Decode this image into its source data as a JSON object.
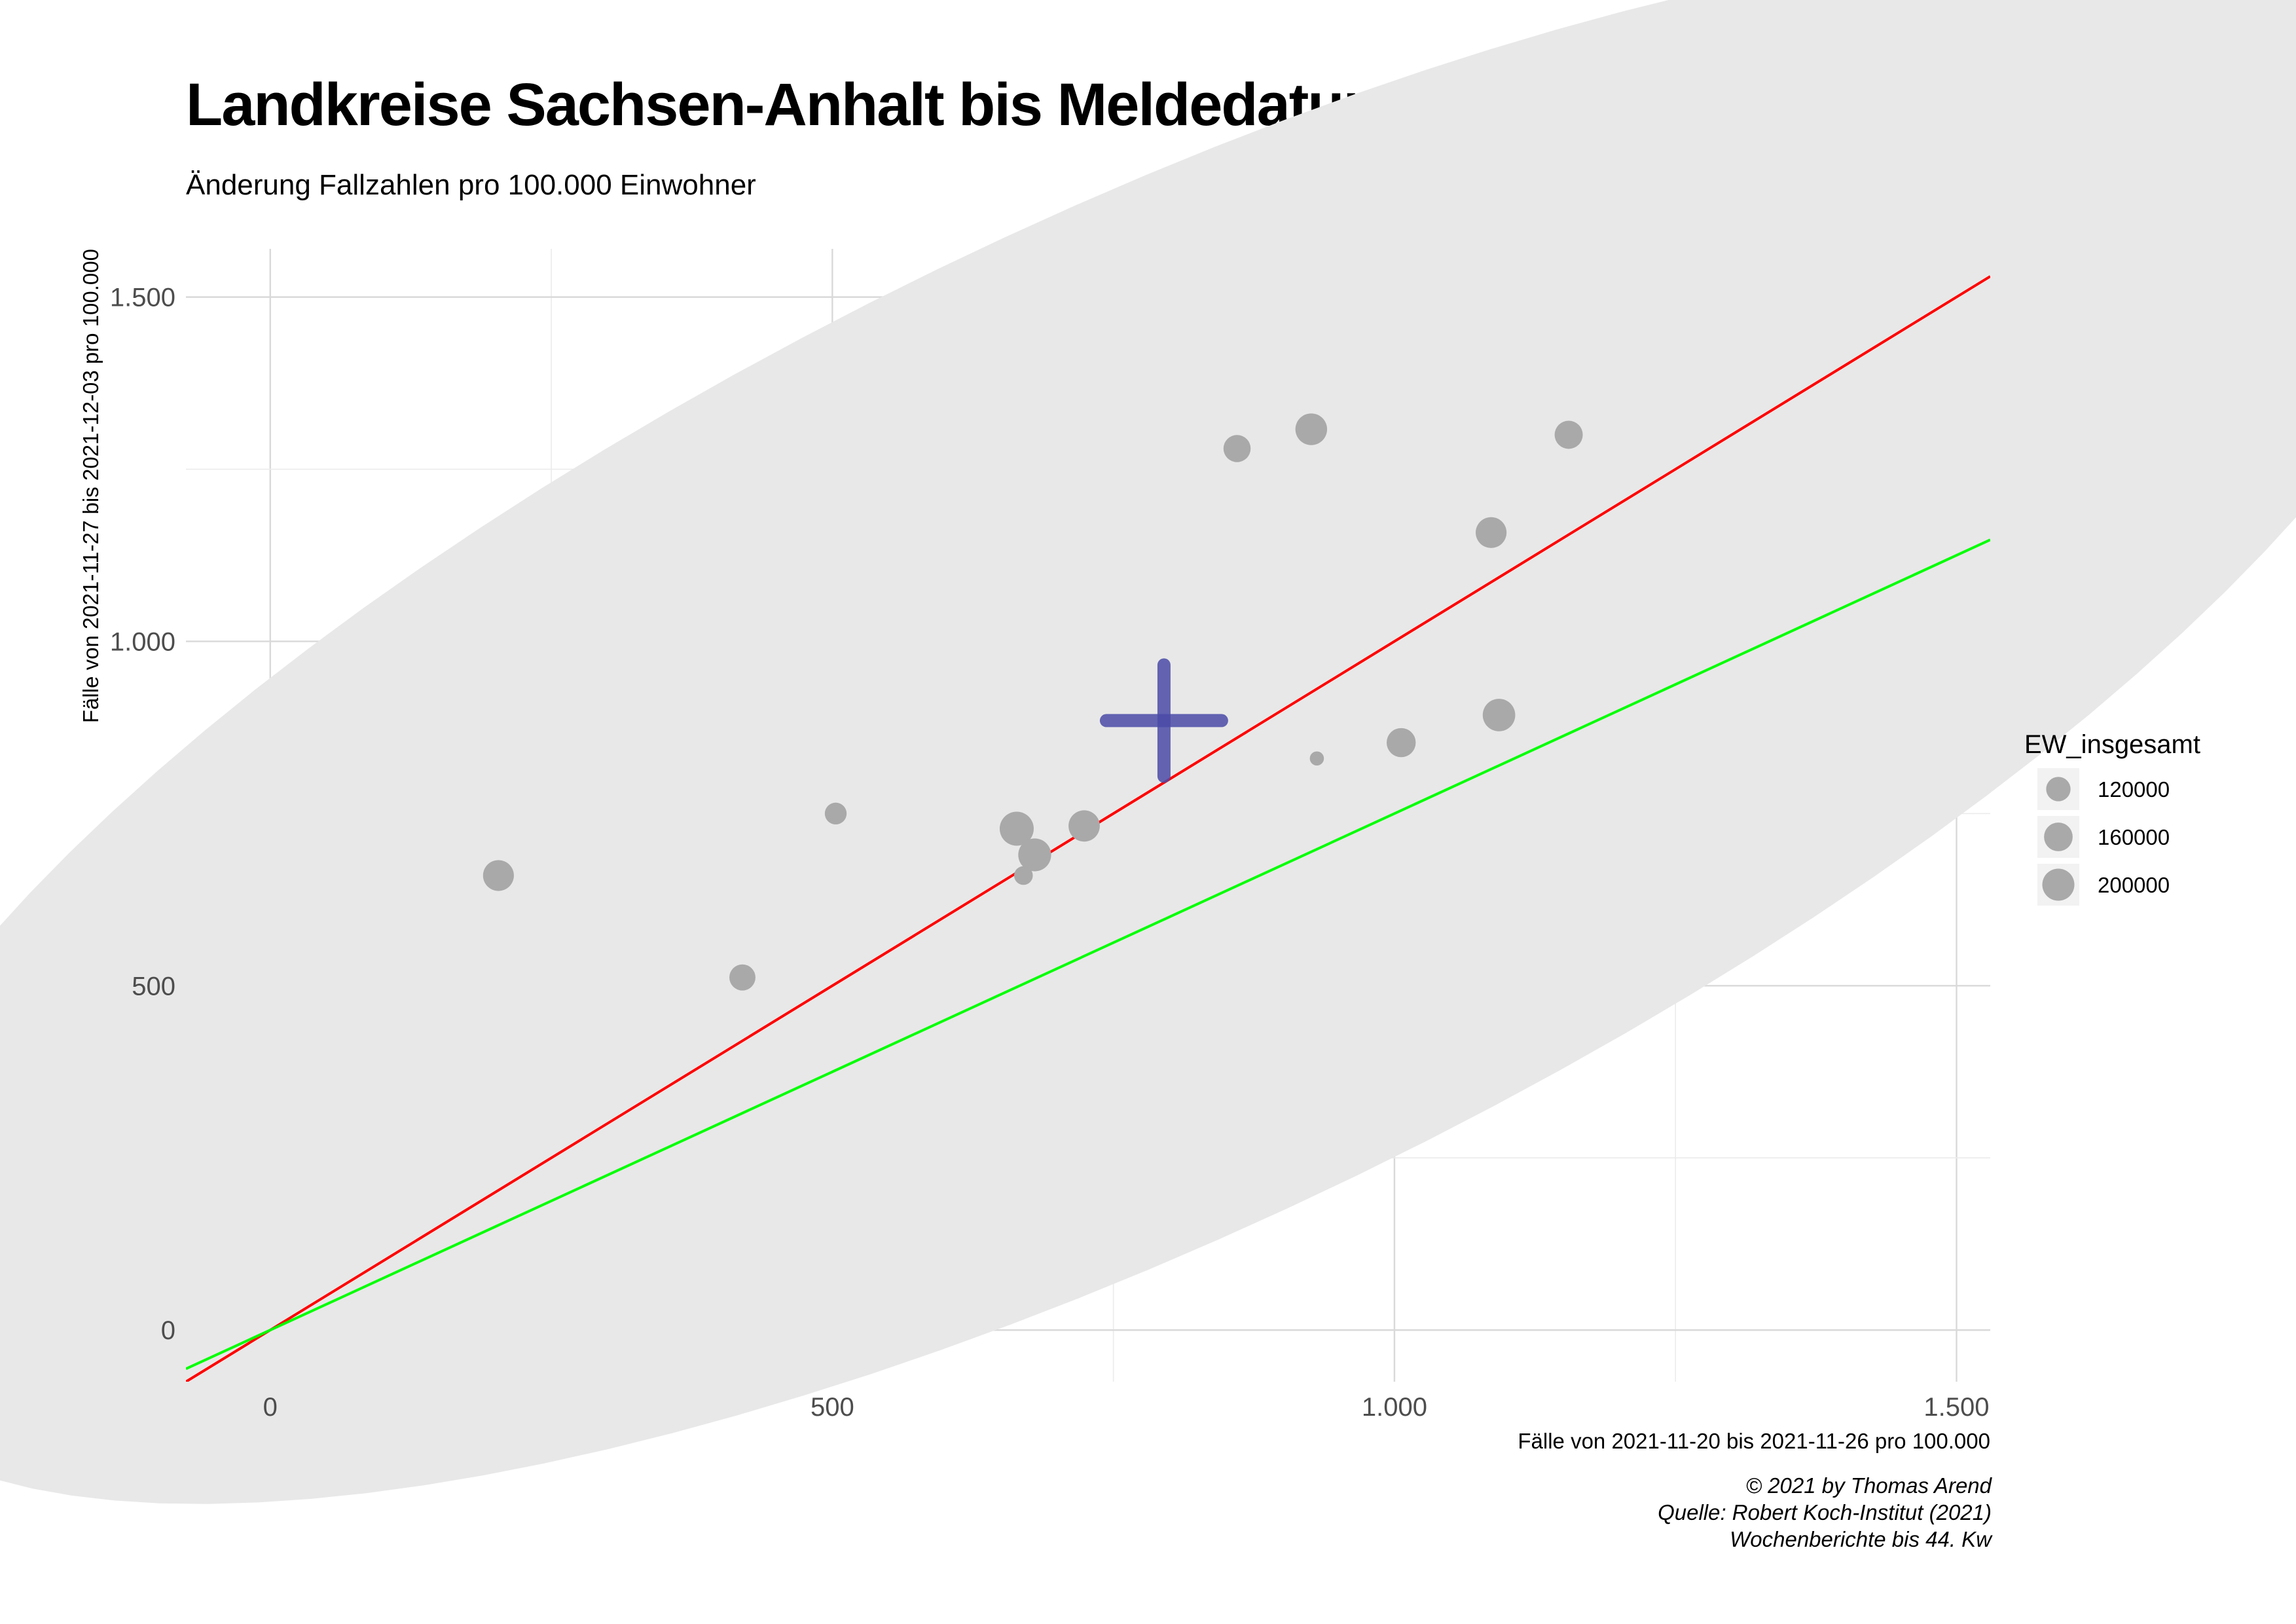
{
  "title": "Landkreise Sachsen-Anhalt bis Meldedatum 2021-12-03",
  "subtitle": "Änderung Fallzahlen pro 100.000 Einwohner",
  "caption": {
    "line1": "© 2021 by Thomas Arend",
    "line2": "Quelle: Robert Koch-Institut (2021)",
    "line3": "Wochenberichte bis 44. Kw"
  },
  "chart_data": {
    "type": "scatter",
    "xlabel": "Fälle von 2021-11-20 bis 2021-11-26 pro 100.000",
    "ylabel": "Fälle von 2021-11-27 bis 2021-12-03 pro 100.000",
    "xlim": [
      -75,
      1530
    ],
    "ylim": [
      -75,
      1570
    ],
    "x_ticks": [
      0,
      500,
      1000,
      1500
    ],
    "x_tick_labels": [
      "0",
      "500",
      "1.000",
      "1.500"
    ],
    "y_ticks": [
      0,
      500,
      1000,
      1500
    ],
    "y_tick_labels": [
      "0",
      "500",
      "1.000",
      "1.500"
    ],
    "grid": true,
    "points": [
      {
        "x": 203,
        "y": 660,
        "size": 185000
      },
      {
        "x": 420,
        "y": 512,
        "size": 135000
      },
      {
        "x": 503,
        "y": 750,
        "size": 100000
      },
      {
        "x": 664,
        "y": 728,
        "size": 225000
      },
      {
        "x": 670,
        "y": 660,
        "size": 80000
      },
      {
        "x": 680,
        "y": 690,
        "size": 210000
      },
      {
        "x": 724,
        "y": 732,
        "size": 190000
      },
      {
        "x": 860,
        "y": 1280,
        "size": 145000
      },
      {
        "x": 926,
        "y": 1308,
        "size": 195000
      },
      {
        "x": 931,
        "y": 830,
        "size": 60000
      },
      {
        "x": 1006,
        "y": 853,
        "size": 165000
      },
      {
        "x": 1086,
        "y": 1158,
        "size": 185000
      },
      {
        "x": 1093,
        "y": 893,
        "size": 205000
      },
      {
        "x": 1155,
        "y": 1300,
        "size": 155000
      }
    ],
    "mean_point": {
      "x": 795,
      "y": 885,
      "color": "#4b4ba8"
    },
    "reference_lines": [
      {
        "slope": 1.0,
        "intercept": 0,
        "color": "#ff0000"
      },
      {
        "slope": 0.75,
        "intercept": 0,
        "color": "#00ff00"
      }
    ],
    "ellipse": {
      "color": "#e8e8e8"
    },
    "point_color": "#a9a9a9",
    "legend": {
      "title": "EW_insgesamt",
      "placement": "right",
      "entries": [
        {
          "label": "120000",
          "value": 120000
        },
        {
          "label": "160000",
          "value": 160000
        },
        {
          "label": "200000",
          "value": 200000
        }
      ]
    }
  }
}
